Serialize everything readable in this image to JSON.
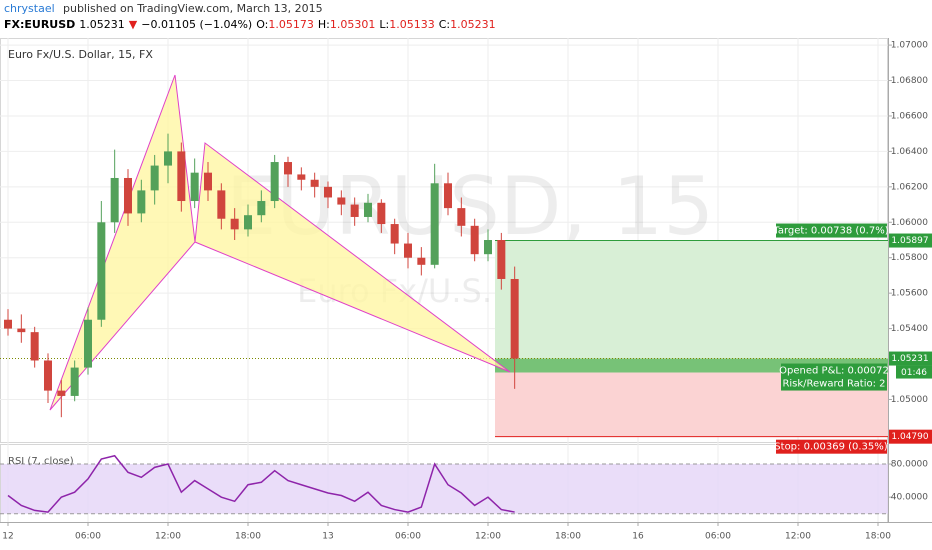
{
  "header": {
    "author": "chrystael",
    "published": "published on TradingView.com, March 13, 2015"
  },
  "symbol_bar": {
    "symbol": "FX:EURUSD",
    "last": "1.05231",
    "arrow": "▼",
    "change": "−0.01105 (−1.04%)",
    "open_label": "O:",
    "open": "1.05173",
    "high_label": "H:",
    "high": "1.05301",
    "low_label": "L:",
    "low": "1.05133",
    "close_label": "C:",
    "close": "1.05231"
  },
  "position": {
    "target_label": "Target: 0.00738 (0.7%)",
    "pnl_label": "Opened P&L: 0.00072",
    "ratio_label": "Risk/Reward Ratio: 2",
    "stop_label": "Stop: 0.00369 (0.35%)",
    "countdown": "01:46"
  },
  "chart_data": [
    {
      "type": "candlestick",
      "title": "Euro Fx/U.S. Dollar, 15, FX",
      "watermark_symbol": "EURUSD, 15",
      "watermark_name": "Euro Fx/U.S. Dollar",
      "up_color": "#53a15a",
      "down_color": "#d0453d",
      "grid": true,
      "x": [
        0,
        1,
        2,
        3,
        4,
        5,
        6,
        7,
        8,
        9,
        10,
        11,
        12,
        13,
        14,
        15,
        16,
        17,
        18,
        19,
        20,
        21,
        22,
        23,
        24,
        25,
        26,
        27,
        28,
        29,
        30,
        31,
        32,
        33,
        34,
        35,
        36,
        37,
        38
      ],
      "open": [
        1.0545,
        1.054,
        1.0538,
        1.0522,
        1.0505,
        1.0502,
        1.0518,
        1.0545,
        1.06,
        1.0625,
        1.0605,
        1.0618,
        1.0632,
        1.064,
        1.0612,
        1.0628,
        1.0618,
        1.0602,
        1.0596,
        1.0604,
        1.0612,
        1.0634,
        1.0627,
        1.0624,
        1.062,
        1.0614,
        1.061,
        1.0603,
        1.0611,
        1.0599,
        1.0588,
        1.058,
        1.0576,
        1.0622,
        1.0608,
        1.0598,
        1.0582,
        1.059,
        1.0568
      ],
      "high": [
        1.0551,
        1.0548,
        1.0541,
        1.0526,
        1.0511,
        1.0522,
        1.0552,
        1.0612,
        1.0641,
        1.063,
        1.0624,
        1.0638,
        1.065,
        1.0645,
        1.0636,
        1.0634,
        1.0622,
        1.0608,
        1.061,
        1.0618,
        1.0638,
        1.0637,
        1.0631,
        1.0628,
        1.0623,
        1.0618,
        1.0614,
        1.0616,
        1.0613,
        1.0602,
        1.0594,
        1.0586,
        1.0633,
        1.0628,
        1.0614,
        1.0602,
        1.0596,
        1.0594,
        1.0575
      ],
      "low": [
        1.0536,
        1.0532,
        1.0518,
        1.0498,
        1.049,
        1.0499,
        1.0514,
        1.0541,
        1.0594,
        1.0598,
        1.06,
        1.061,
        1.0622,
        1.0606,
        1.0608,
        1.0612,
        1.0596,
        1.059,
        1.0592,
        1.06,
        1.0608,
        1.062,
        1.0618,
        1.0614,
        1.0608,
        1.0604,
        1.0598,
        1.06,
        1.0594,
        1.0582,
        1.0574,
        1.057,
        1.0574,
        1.0604,
        1.0592,
        1.0578,
        1.0578,
        1.0562,
        1.0506
      ],
      "close": [
        1.054,
        1.0538,
        1.0522,
        1.0505,
        1.0502,
        1.0518,
        1.0545,
        1.06,
        1.0625,
        1.0605,
        1.0618,
        1.0632,
        1.064,
        1.0612,
        1.0628,
        1.0618,
        1.0602,
        1.0596,
        1.0604,
        1.0612,
        1.0634,
        1.0627,
        1.0624,
        1.062,
        1.0614,
        1.061,
        1.0603,
        1.0611,
        1.0599,
        1.0588,
        1.058,
        1.0576,
        1.0622,
        1.0608,
        1.0598,
        1.0582,
        1.059,
        1.0568,
        1.05231
      ],
      "xlim": [
        -0.6,
        66
      ],
      "ylim": [
        1.0476,
        1.0704
      ],
      "yticks": [
        {
          "value": 1.07,
          "label": "1.07000"
        },
        {
          "value": 1.068,
          "label": "1.06800"
        },
        {
          "value": 1.066,
          "label": "1.06600"
        },
        {
          "value": 1.064,
          "label": "1.06400"
        },
        {
          "value": 1.062,
          "label": "1.06200"
        },
        {
          "value": 1.06,
          "label": "1.06000"
        },
        {
          "value": 1.058,
          "label": "1.05800"
        },
        {
          "value": 1.056,
          "label": "1.05600"
        },
        {
          "value": 1.054,
          "label": "1.05400"
        },
        {
          "value": 1.05,
          "label": "1.05000"
        }
      ],
      "xticks": [
        {
          "value": 0,
          "label": "12"
        },
        {
          "value": 6,
          "label": "06:00"
        },
        {
          "value": 12,
          "label": "12:00"
        },
        {
          "value": 18,
          "label": "18:00"
        },
        {
          "value": 24,
          "label": "13"
        },
        {
          "value": 30,
          "label": "06:00"
        },
        {
          "value": 36,
          "label": "12:00"
        },
        {
          "value": 42,
          "label": "18:00"
        },
        {
          "value": 47.25,
          "label": "16"
        },
        {
          "value": 53.25,
          "label": "06:00"
        },
        {
          "value": 59.25,
          "label": "12:00"
        },
        {
          "value": 65.25,
          "label": "18:00"
        }
      ],
      "price_labels": [
        {
          "value": 1.05897,
          "label": "1.05897",
          "color": "#2e9c3c"
        },
        {
          "value": 1.05231,
          "label": "1.05231",
          "color": "#2e9c3c"
        },
        {
          "value": 1.0479,
          "label": "1.04790",
          "color": "#e0201d"
        }
      ]
    },
    {
      "type": "line",
      "title": "RSI (7, close)",
      "color": "#8e24aa",
      "band": [
        20,
        80
      ],
      "band_color": "#e5d4f7",
      "x": [
        0,
        1,
        2,
        3,
        4,
        5,
        6,
        7,
        8,
        9,
        10,
        11,
        12,
        13,
        14,
        15,
        16,
        17,
        18,
        19,
        20,
        21,
        22,
        23,
        24,
        25,
        26,
        27,
        28,
        29,
        30,
        31,
        32,
        33,
        34,
        35,
        36,
        37,
        38
      ],
      "values": [
        42,
        30,
        24,
        22,
        40,
        46,
        62,
        86,
        90,
        70,
        64,
        76,
        80,
        46,
        60,
        50,
        40,
        35,
        55,
        58,
        72,
        60,
        55,
        50,
        45,
        42,
        35,
        46,
        30,
        25,
        22,
        28,
        80,
        55,
        45,
        30,
        40,
        25,
        22
      ],
      "ylim": [
        10,
        103
      ],
      "yticks": [
        {
          "value": 80,
          "label": "80.0000"
        },
        {
          "value": 40,
          "label": "40.0000"
        }
      ]
    }
  ]
}
